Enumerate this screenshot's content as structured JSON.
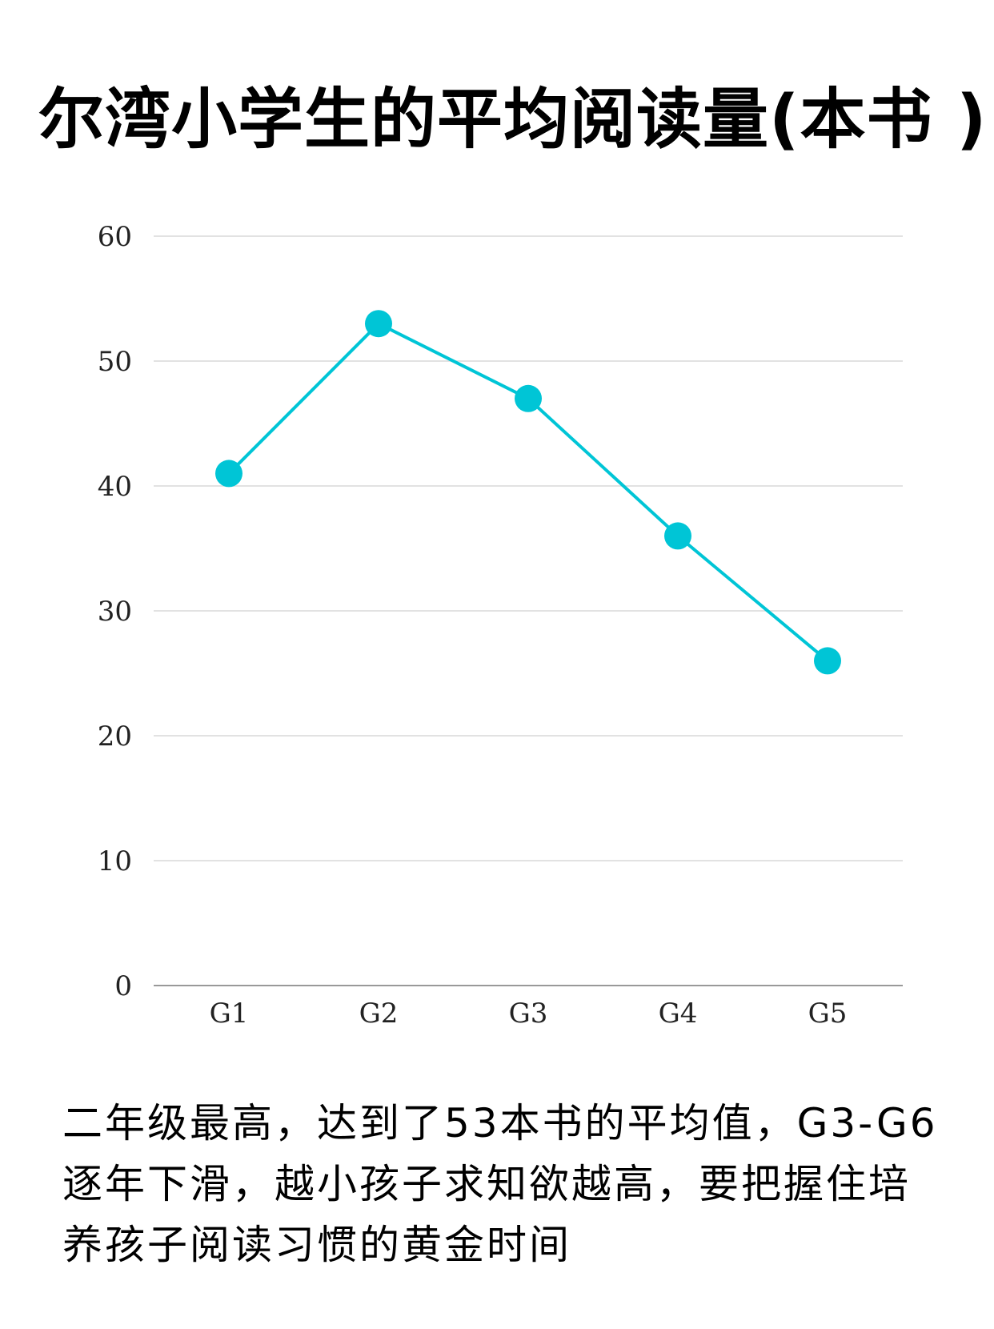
{
  "title": "尔湾小学生的平均阅读量(本书 )",
  "caption": "二年级最高，达到了53本书的平均值，G3-G6逐年下滑，越小孩子求知欲越高，要把握住培养孩子阅读习惯的黄金时间",
  "colors": {
    "line": "#00C5D6",
    "grid": "#D9D9D9",
    "axis": "#999999"
  },
  "chart_data": {
    "type": "line",
    "categories": [
      "G1",
      "G2",
      "G3",
      "G4",
      "G5"
    ],
    "series": [
      {
        "values": [
          41,
          53,
          47,
          36,
          26
        ]
      }
    ],
    "ylim": [
      0,
      60
    ],
    "yticks": [
      "0",
      "10",
      "20",
      "30",
      "40",
      "50",
      "60"
    ],
    "grid": true
  }
}
